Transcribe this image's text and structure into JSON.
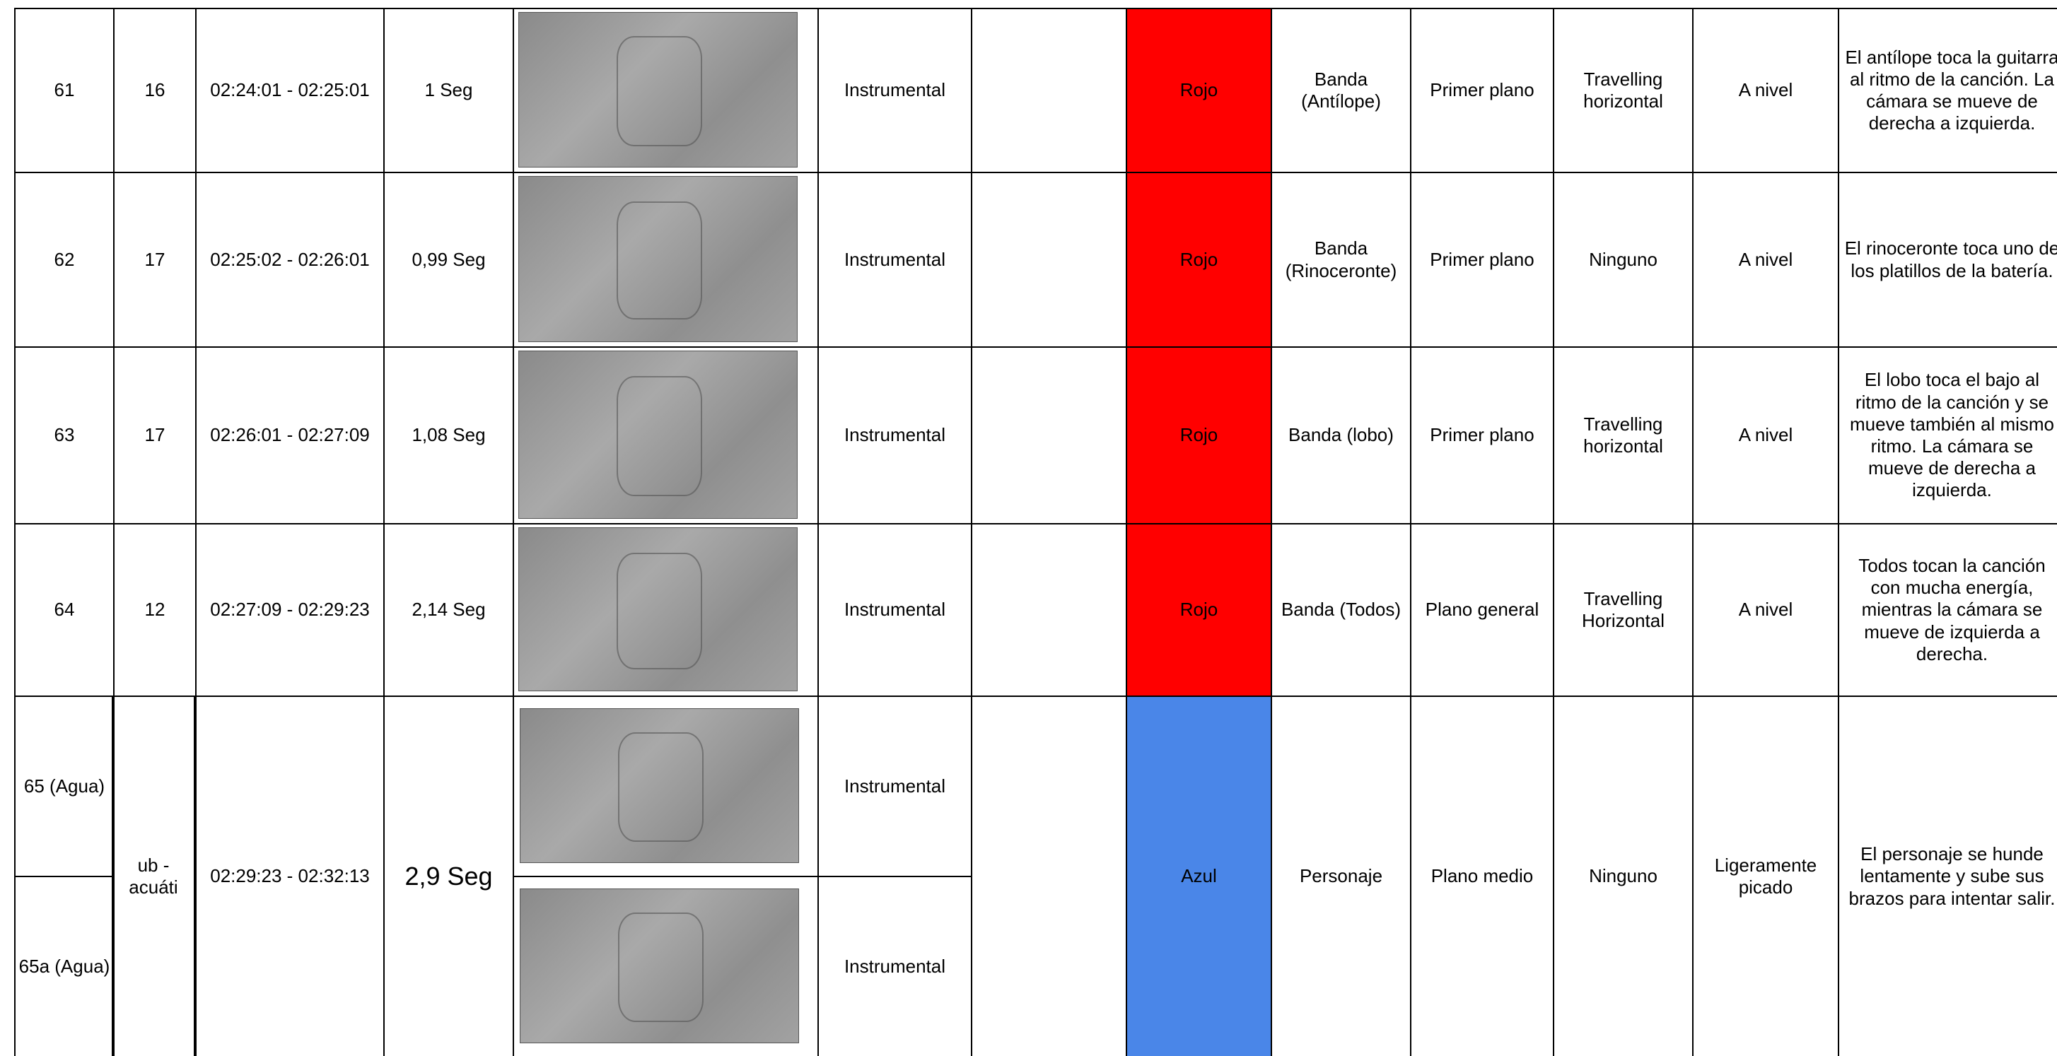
{
  "rows": [
    {
      "shot": "61",
      "scene": "16",
      "time": "02:24:01 - 02:25:01",
      "duration": "1 Seg",
      "audio": "Instrumental",
      "color": "Rojo",
      "fill": "#ff0000",
      "subject": "Banda (Antílope)",
      "plane": "Primer plano",
      "movement": "Travelling horizontal",
      "angle": "A nivel",
      "description": "El antílope toca la guitarra al ritmo de la canción. La cámara se mueve de derecha a izquierda."
    },
    {
      "shot": "62",
      "scene": "17",
      "time": "02:25:02 - 02:26:01",
      "duration": "0,99 Seg",
      "audio": "Instrumental",
      "color": "Rojo",
      "fill": "#ff0000",
      "subject": "Banda (Rinoceronte)",
      "plane": "Primer plano",
      "movement": "Ninguno",
      "angle": "A nivel",
      "description": "El rinoceronte toca uno de los platillos de la batería."
    },
    {
      "shot": "63",
      "scene": "17",
      "time": "02:26:01 - 02:27:09",
      "duration": "1,08 Seg",
      "audio": "Instrumental",
      "color": "Rojo",
      "fill": "#ff0000",
      "subject": "Banda (lobo)",
      "plane": "Primer plano",
      "movement": "Travelling horizontal",
      "angle": "A nivel",
      "description": "El lobo toca el bajo al ritmo de la canción y se mueve también al mismo ritmo. La cámara se mueve de derecha a izquierda."
    },
    {
      "shot": "64",
      "scene": "12",
      "time": "02:27:09 - 02:29:23",
      "duration": "2,14 Seg",
      "audio": "Instrumental",
      "color": "Rojo",
      "fill": "#ff0000",
      "subject": "Banda (Todos)",
      "plane": "Plano general",
      "movement": "Travelling Horizontal",
      "angle": "A nivel",
      "description": "Todos tocan la canción con mucha energía, mientras la cámara se mueve de izquierda a derecha."
    },
    {
      "shot": [
        "65 (Agua)",
        "65a (Agua)"
      ],
      "scene": "ub - acuáti",
      "time": "02:29:23 - 02:32:13",
      "duration": "2,9 Seg",
      "audio": [
        "Instrumental",
        "Instrumental"
      ],
      "color": "Azul",
      "fill": "#4a86e8",
      "subject": "Personaje",
      "plane": "Plano medio",
      "movement": "Ninguno",
      "angle": "Ligeramente picado",
      "description": "El personaje se hunde lentamente y sube sus brazos para intentar salir."
    }
  ]
}
